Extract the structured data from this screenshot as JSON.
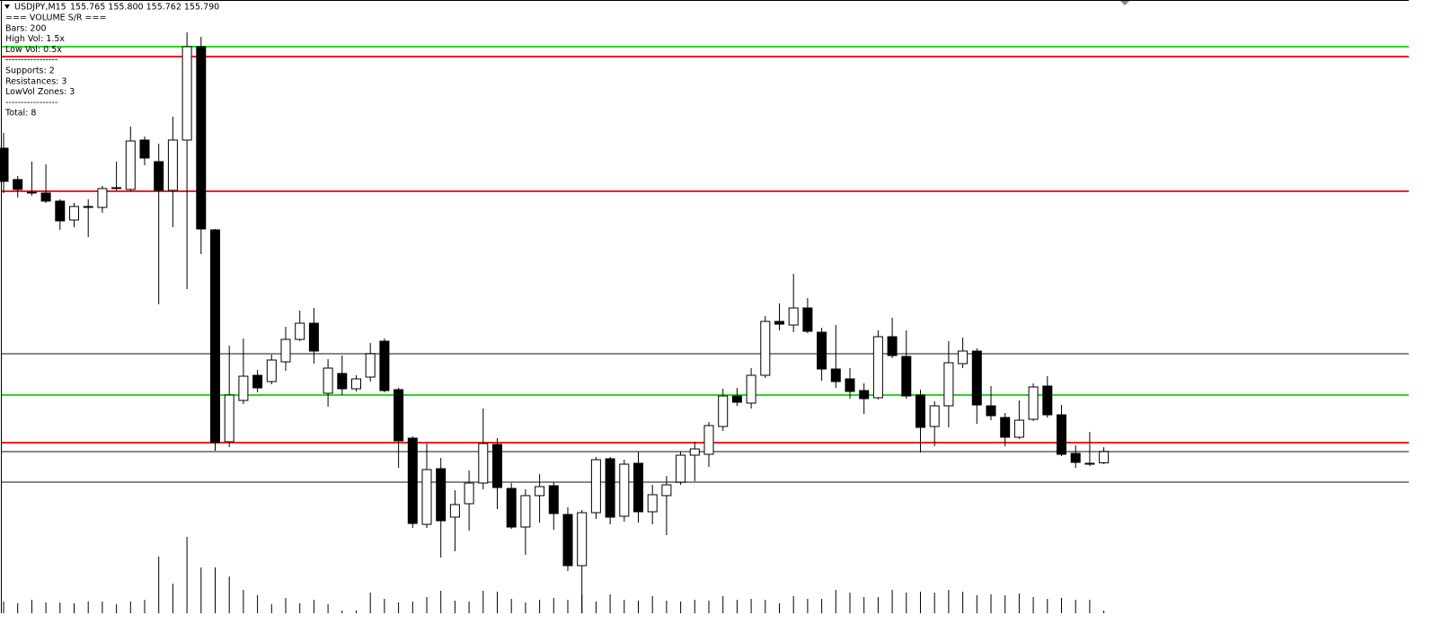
{
  "chart_data": {
    "type": "candlestick",
    "title": "USDJPY,M15",
    "quote": "155.765 155.800 155.762 155.790",
    "info_lines": [
      "=== VOLUME S/R ===",
      "Bars: 200",
      "High Vol: 1.5x",
      "Low Vol: 0.5x",
      "-----------------",
      "Supports: 2",
      "Resistances: 3",
      "LowVol Zones: 3",
      "-----------------",
      "Total: 8"
    ],
    "ylim": [
      155.43,
      156.796
    ],
    "vlim": [
      0,
      1000
    ],
    "bull_color": "#ffffff",
    "bear_color": "#000000",
    "volume_color": "#000000",
    "open": [
      156.466,
      156.396,
      156.368,
      156.366,
      156.348,
      156.306,
      156.336,
      156.334,
      156.376,
      156.374,
      156.484,
      156.436,
      156.372,
      156.484,
      156.692,
      156.284,
      155.812,
      155.904,
      155.96,
      155.946,
      155.99,
      156.04,
      156.076,
      155.92,
      155.964,
      155.93,
      155.956,
      156.036,
      155.928,
      155.82,
      155.628,
      155.752,
      155.644,
      155.674,
      155.72,
      155.806,
      155.708,
      155.622,
      155.692,
      155.714,
      155.65,
      155.536,
      155.654,
      155.774,
      155.646,
      155.764,
      155.656,
      155.692,
      155.722,
      155.782,
      155.784,
      155.846,
      155.914,
      155.898,
      155.96,
      156.08,
      156.072,
      156.11,
      156.056,
      155.974,
      155.952,
      155.926,
      155.91,
      156.046,
      156.002,
      155.916,
      155.846,
      155.892,
      155.986,
      156.014,
      155.892,
      155.866,
      155.822,
      155.862,
      155.936,
      155.872,
      155.786,
      155.764,
      155.765
    ],
    "high": [
      156.5,
      156.404,
      156.436,
      156.43,
      156.352,
      156.344,
      156.352,
      156.382,
      156.436,
      156.514,
      156.492,
      156.476,
      156.536,
      156.724,
      156.714,
      156.286,
      156.026,
      156.042,
      155.972,
      156.006,
      156.068,
      156.104,
      156.11,
      155.996,
      156.004,
      155.96,
      156.032,
      156.042,
      155.932,
      155.824,
      155.808,
      155.776,
      155.704,
      155.748,
      155.886,
      155.82,
      155.72,
      155.706,
      155.74,
      155.722,
      155.666,
      155.66,
      155.778,
      155.778,
      155.772,
      155.79,
      155.716,
      155.736,
      155.79,
      155.812,
      155.856,
      155.93,
      155.932,
      155.976,
      156.092,
      156.12,
      156.186,
      156.132,
      156.066,
      156.072,
      155.976,
      155.942,
      156.06,
      156.088,
      156.06,
      155.928,
      155.902,
      156.036,
      156.044,
      156.02,
      155.936,
      155.876,
      155.904,
      155.942,
      155.958,
      155.894,
      155.804,
      155.834,
      155.8
    ],
    "low": [
      156.366,
      156.356,
      156.36,
      156.344,
      156.284,
      156.29,
      156.268,
      156.322,
      156.372,
      156.37,
      156.428,
      156.118,
      156.29,
      156.152,
      156.23,
      155.792,
      155.8,
      155.896,
      155.922,
      155.94,
      155.97,
      156.036,
      155.986,
      155.89,
      155.916,
      155.924,
      155.946,
      155.922,
      155.754,
      155.62,
      155.62,
      155.554,
      155.568,
      155.614,
      155.706,
      155.662,
      155.618,
      155.56,
      155.632,
      155.616,
      155.524,
      155.43,
      155.64,
      155.628,
      155.634,
      155.632,
      155.628,
      155.604,
      155.716,
      155.724,
      155.756,
      155.836,
      155.892,
      155.886,
      155.954,
      156.06,
      156.056,
      156.054,
      155.948,
      155.932,
      155.908,
      155.874,
      155.906,
      155.998,
      155.908,
      155.788,
      155.802,
      155.844,
      155.976,
      155.852,
      155.86,
      155.802,
      155.818,
      155.858,
      155.866,
      155.78,
      155.754,
      155.758,
      155.762
    ],
    "close": [
      156.392,
      156.374,
      156.368,
      156.348,
      156.304,
      156.336,
      156.334,
      156.376,
      156.378,
      156.482,
      156.444,
      156.372,
      156.484,
      156.692,
      156.286,
      155.81,
      155.916,
      155.958,
      155.932,
      155.994,
      156.04,
      156.076,
      156.014,
      155.976,
      155.93,
      155.952,
      156.008,
      155.926,
      155.814,
      155.63,
      155.75,
      155.636,
      155.672,
      155.72,
      155.808,
      155.71,
      155.622,
      155.692,
      155.712,
      155.652,
      155.536,
      155.654,
      155.772,
      155.644,
      155.762,
      155.656,
      155.694,
      155.716,
      155.782,
      155.796,
      155.848,
      155.914,
      155.9,
      155.96,
      156.08,
      156.074,
      156.11,
      156.058,
      155.974,
      155.946,
      155.924,
      155.908,
      156.046,
      156.004,
      155.914,
      155.844,
      155.892,
      155.988,
      156.014,
      155.894,
      155.87,
      155.822,
      155.86,
      155.934,
      155.872,
      155.784,
      155.766,
      155.762,
      155.79
    ],
    "volume": [
      130,
      110,
      150,
      120,
      120,
      110,
      130,
      130,
      100,
      130,
      150,
      630,
      330,
      850,
      510,
      510,
      410,
      260,
      200,
      100,
      170,
      110,
      150,
      100,
      30,
      30,
      230,
      160,
      120,
      130,
      180,
      250,
      140,
      130,
      250,
      240,
      160,
      120,
      150,
      170,
      150,
      210,
      130,
      210,
      150,
      140,
      190,
      140,
      130,
      150,
      140,
      190,
      150,
      160,
      150,
      110,
      190,
      160,
      160,
      260,
      230,
      180,
      180,
      260,
      230,
      240,
      230,
      260,
      240,
      200,
      210,
      200,
      220,
      180,
      160,
      170,
      150,
      150,
      30
    ],
    "levels": [
      {
        "value": 156.692,
        "color": "#22dd22"
      },
      {
        "value": 156.67,
        "color": "#ee2222"
      },
      {
        "value": 156.37,
        "color": "#ee2222"
      },
      {
        "value": 156.008,
        "color": "#888888"
      },
      {
        "value": 155.916,
        "color": "#22dd22"
      },
      {
        "value": 155.81,
        "color": "#ee2222"
      },
      {
        "value": 155.79,
        "color": "#888888"
      },
      {
        "value": 155.722,
        "color": "#888888"
      }
    ]
  }
}
